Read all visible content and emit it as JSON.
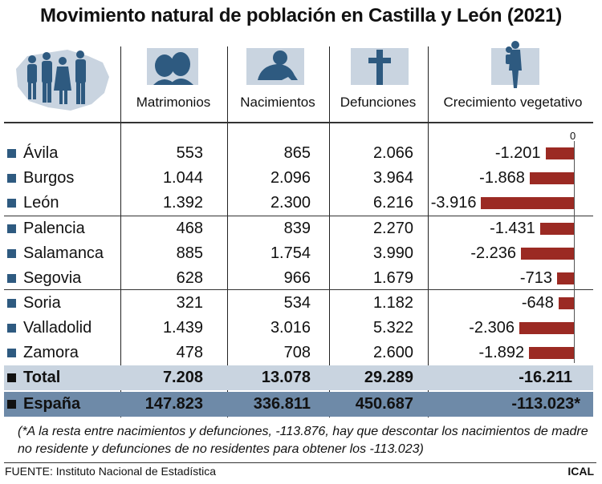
{
  "title": "Movimiento natural de población en Castilla y León (2021)",
  "icons": {
    "region": "people-map-icon",
    "marriages": "couple-icon",
    "births": "baby-icon",
    "deaths": "cross-icon",
    "growth": "parent-child-icon"
  },
  "columns": {
    "marriages": "Matrimonios",
    "births": "Nacimientos",
    "deaths": "Defunciones",
    "growth": "Crecimiento vegetativo"
  },
  "zero_label": "0",
  "colors": {
    "bullet": "#2e5a80",
    "bar": "#9b2a23",
    "total_row_bg": "#c9d4e0",
    "espana_row_bg": "#6e8aa8"
  },
  "rows": [
    {
      "name": "Ávila",
      "marriages": "553",
      "births": "865",
      "deaths": "2.066",
      "growth": "-1.201"
    },
    {
      "name": "Burgos",
      "marriages": "1.044",
      "births": "2.096",
      "deaths": "3.964",
      "growth": "-1.868"
    },
    {
      "name": "León",
      "marriages": "1.392",
      "births": "2.300",
      "deaths": "6.216",
      "growth": "-3.916"
    },
    {
      "name": "Palencia",
      "marriages": "468",
      "births": "839",
      "deaths": "2.270",
      "growth": "-1.431"
    },
    {
      "name": "Salamanca",
      "marriages": "885",
      "births": "1.754",
      "deaths": "3.990",
      "growth": "-2.236"
    },
    {
      "name": "Segovia",
      "marriages": "628",
      "births": "966",
      "deaths": "1.679",
      "growth": "-713"
    },
    {
      "name": "Soria",
      "marriages": "321",
      "births": "534",
      "deaths": "1.182",
      "growth": "-648"
    },
    {
      "name": "Valladolid",
      "marriages": "1.439",
      "births": "3.016",
      "deaths": "5.322",
      "growth": "-2.306"
    },
    {
      "name": "Zamora",
      "marriages": "478",
      "births": "708",
      "deaths": "2.600",
      "growth": "-1.892"
    }
  ],
  "total": {
    "name": "Total",
    "marriages": "7.208",
    "births": "13.078",
    "deaths": "29.289",
    "growth": "-16.211"
  },
  "espana": {
    "name": "España",
    "marriages": "147.823",
    "births": "336.811",
    "deaths": "450.687",
    "growth": "-113.023*"
  },
  "note": "(*A la resta entre nacimientos y defunciones, -113.876, hay que descontar los nacimientos de madre no residente y defunciones de no residentes para obtener los -113.023)",
  "footer": {
    "source": "FUENTE: Instituto Nacional de Estadística",
    "brand": "ICAL"
  },
  "chart_data": {
    "type": "bar",
    "title": "Movimiento natural de población en Castilla y León (2021)",
    "categories": [
      "Ávila",
      "Burgos",
      "León",
      "Palencia",
      "Salamanca",
      "Segovia",
      "Soria",
      "Valladolid",
      "Zamora"
    ],
    "series": [
      {
        "name": "Crecimiento vegetativo",
        "values": [
          -1201,
          -1868,
          -3916,
          -1431,
          -2236,
          -713,
          -648,
          -2306,
          -1892
        ]
      }
    ],
    "xlim": [
      -4000,
      0
    ]
  }
}
